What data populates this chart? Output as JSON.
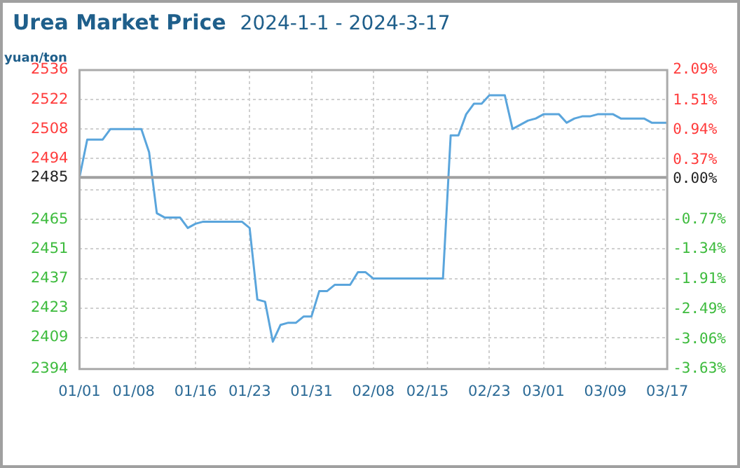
{
  "chart_data": {
    "type": "line",
    "title": "Urea Market Price",
    "subtitle": "2024-1-1 - 2024-3-17",
    "ylabel": "yuan/ton",
    "categories": [
      "01/01",
      null,
      null,
      null,
      null,
      null,
      null,
      "01/08",
      null,
      null,
      null,
      null,
      null,
      null,
      null,
      "01/16",
      null,
      null,
      null,
      null,
      null,
      null,
      "01/23",
      null,
      null,
      null,
      null,
      null,
      null,
      null,
      "01/31",
      null,
      null,
      null,
      null,
      null,
      null,
      null,
      "02/08",
      null,
      null,
      null,
      null,
      null,
      null,
      "02/15",
      null,
      null,
      null,
      null,
      null,
      null,
      null,
      "02/23",
      null,
      null,
      null,
      null,
      null,
      null,
      "03/01",
      null,
      null,
      null,
      null,
      null,
      null,
      null,
      "03/09",
      null,
      null,
      null,
      null,
      null,
      null,
      null,
      "03/17"
    ],
    "series": [
      {
        "color": "#5aa5dc",
        "values": [
          2485,
          2503,
          2503,
          2503,
          2508,
          2508,
          2508,
          2508,
          2508,
          2497,
          2468,
          2466,
          2466,
          2466,
          2461,
          2463,
          2464,
          2464,
          2464,
          2464,
          2464,
          2464,
          2461,
          2427,
          2426,
          2407,
          2415,
          2416,
          2416,
          2419,
          2419,
          2431,
          2431,
          2434,
          2434,
          2434,
          2440,
          2440,
          2437,
          2437,
          2437,
          2437,
          2437,
          2437,
          2437,
          2437,
          2437,
          2437,
          2505,
          2505,
          2515,
          2520,
          2520,
          2524,
          2524,
          2524,
          2508,
          2510,
          2512,
          2513,
          2515,
          2515,
          2515,
          2511,
          2513,
          2514,
          2514,
          2515,
          2515,
          2515,
          2513,
          2513,
          2513,
          2513,
          2511,
          2511,
          2511
        ]
      }
    ],
    "ylim": [
      2394,
      2536
    ],
    "yticks": [
      2394,
      2409,
      2423,
      2437,
      2451,
      2465,
      {
        "value": 2479,
        "label": null
      },
      2485,
      2494,
      2508,
      2522,
      2536
    ],
    "y2lim": [
      -3.63,
      2.09
    ],
    "y2ticks": [
      {
        "value": -3.63,
        "label": "-3.63%"
      },
      {
        "value": -3.06,
        "label": "-3.06%"
      },
      {
        "value": -2.49,
        "label": "-2.49%"
      },
      {
        "value": -1.91,
        "label": "-1.91%"
      },
      {
        "value": -1.34,
        "label": "-1.34%"
      },
      {
        "value": -0.77,
        "label": "-0.77%"
      },
      {
        "value": 0,
        "label": "0.00%"
      },
      {
        "value": 0.37,
        "label": "0.37%"
      },
      {
        "value": 0.94,
        "label": "0.94%"
      },
      {
        "value": 1.51,
        "label": "1.51%"
      },
      {
        "value": 2.09,
        "label": "2.09%"
      }
    ],
    "ref_lines": [
      {
        "axis": "y",
        "value": 2485,
        "color": "#a0a0a0",
        "line_style": "solid"
      }
    ],
    "grid": true,
    "marker": "none",
    "line_style": "solid"
  }
}
